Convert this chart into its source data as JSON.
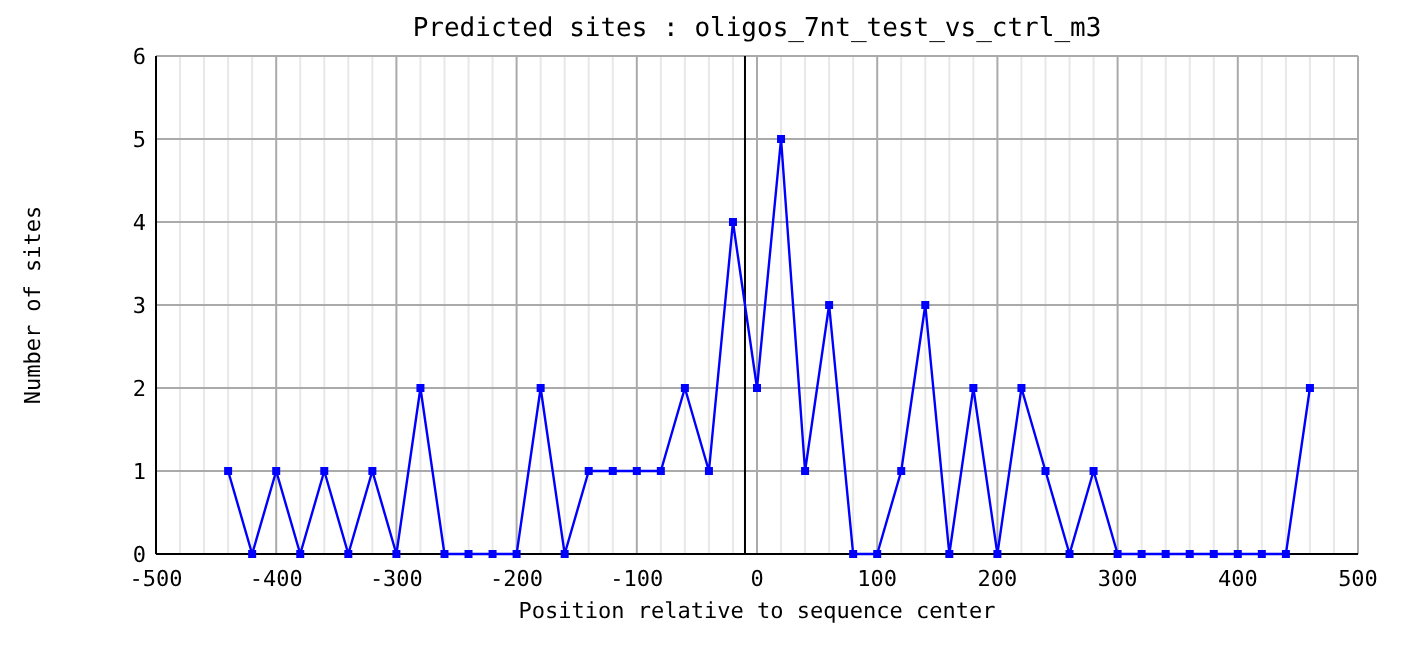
{
  "chart_data": {
    "type": "line",
    "title": "Predicted sites : oligos_7nt_test_vs_ctrl_m3",
    "xlabel": "Position relative to sequence center",
    "ylabel": "Number of sites",
    "x": [
      -440,
      -420,
      -400,
      -380,
      -360,
      -340,
      -320,
      -300,
      -280,
      -260,
      -240,
      -220,
      -200,
      -180,
      -160,
      -140,
      -120,
      -100,
      -80,
      -60,
      -40,
      -20,
      0,
      20,
      40,
      60,
      80,
      100,
      120,
      140,
      160,
      180,
      200,
      220,
      240,
      260,
      280,
      300,
      320,
      340,
      360,
      380,
      400,
      420,
      440,
      460
    ],
    "series": [
      {
        "color": "#0000ff",
        "values": [
          1,
          0,
          1,
          0,
          1,
          0,
          1,
          0,
          2,
          0,
          0,
          0,
          0,
          2,
          0,
          1,
          1,
          1,
          1,
          2,
          1,
          4,
          2,
          5,
          1,
          3,
          0,
          0,
          1,
          3,
          0,
          2,
          0,
          2,
          1,
          0,
          1,
          0,
          0,
          0,
          0,
          0,
          0,
          0,
          0,
          2
        ]
      }
    ],
    "xlim": [
      -500,
      500
    ],
    "xticks": [
      -500,
      -400,
      -300,
      -200,
      -100,
      0,
      100,
      200,
      300,
      400,
      500
    ],
    "ylim": [
      0,
      6
    ],
    "yticks": [
      0,
      1,
      2,
      3,
      4,
      5,
      6
    ],
    "ref_lines": [
      {
        "axis": "x",
        "value": -10,
        "color": "#000000"
      }
    ],
    "grid": true,
    "marker": "square",
    "line_style": "solid"
  }
}
